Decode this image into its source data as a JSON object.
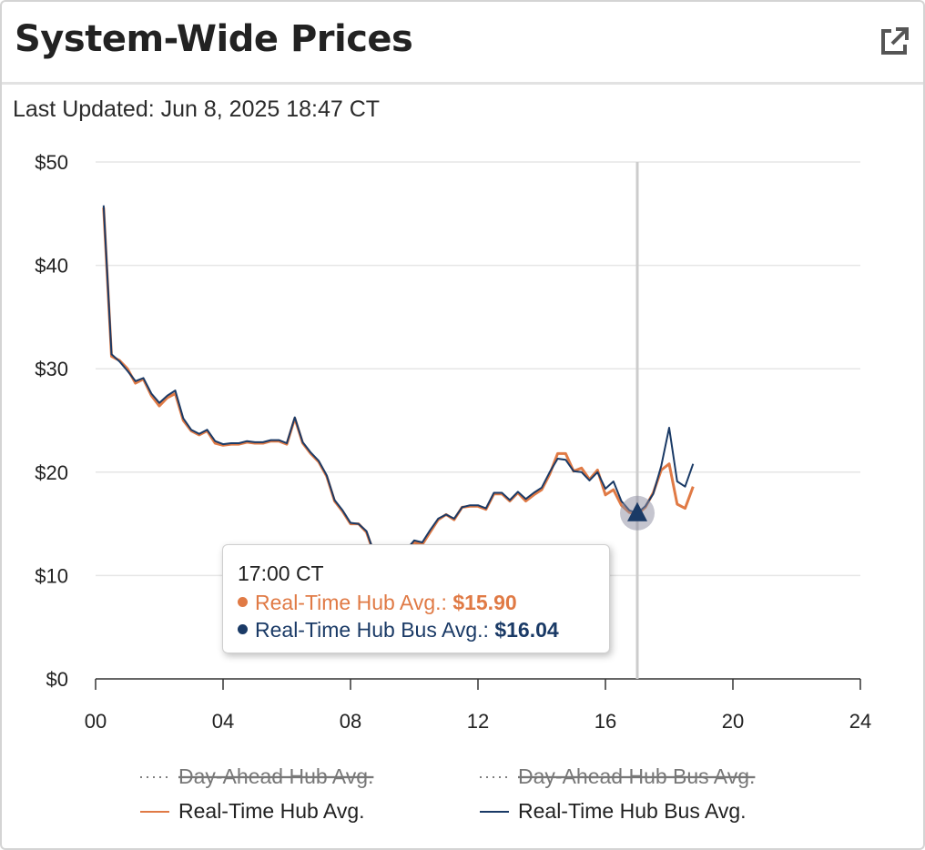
{
  "header": {
    "title": "System-Wide Prices",
    "external_link_icon": "external-link-icon"
  },
  "updated": {
    "text": "Last Updated: Jun 8, 2025 18:47 CT"
  },
  "colors": {
    "rt_hub": "#e07a45",
    "rt_bus": "#1a3a66",
    "grid": "#e6e6e6",
    "crosshair": "#cccccc"
  },
  "chart_data": {
    "type": "line",
    "xlabel": "",
    "ylabel": "",
    "xlim": [
      0,
      24
    ],
    "ylim": [
      0,
      50
    ],
    "x_ticks": [
      0,
      4,
      8,
      12,
      16,
      20,
      24
    ],
    "x_tick_labels": [
      "00",
      "04",
      "08",
      "12",
      "16",
      "20",
      "24"
    ],
    "y_ticks": [
      0,
      10,
      20,
      30,
      40,
      50
    ],
    "y_tick_labels": [
      "$0",
      "$10",
      "$20",
      "$30",
      "$40",
      "$50"
    ],
    "grid": true,
    "legend_position": "bottom",
    "series": [
      {
        "name": "Day-Ahead Hub Avg.",
        "style": "dotted",
        "visible": false,
        "x": [],
        "y": []
      },
      {
        "name": "Day-Ahead Hub Bus Avg.",
        "style": "dotted",
        "visible": false,
        "x": [],
        "y": []
      },
      {
        "name": "Real-Time Hub Avg.",
        "style": "solid",
        "visible": true,
        "x": [
          0.25,
          0.5,
          0.75,
          1.0,
          1.25,
          1.5,
          1.75,
          2.0,
          2.25,
          2.5,
          2.75,
          3.0,
          3.25,
          3.5,
          3.75,
          4.0,
          4.25,
          4.5,
          4.75,
          5.0,
          5.25,
          5.5,
          5.75,
          6.0,
          6.25,
          6.5,
          6.75,
          7.0,
          7.25,
          7.5,
          7.75,
          8.0,
          8.25,
          8.5,
          8.75,
          9.0,
          9.25,
          9.5,
          9.75,
          10.0,
          10.25,
          10.5,
          10.75,
          11.0,
          11.25,
          11.5,
          11.75,
          12.0,
          12.25,
          12.5,
          12.75,
          13.0,
          13.25,
          13.5,
          13.75,
          14.0,
          14.25,
          14.5,
          14.75,
          15.0,
          15.25,
          15.5,
          15.75,
          16.0,
          16.25,
          16.5,
          16.75,
          17.0,
          17.25,
          17.5,
          17.75,
          18.0,
          18.25,
          18.5,
          18.75
        ],
        "y": [
          45.6,
          31.2,
          30.8,
          30.0,
          28.6,
          29.0,
          27.4,
          26.4,
          27.2,
          27.6,
          25.0,
          24.0,
          23.6,
          24.0,
          22.8,
          22.6,
          22.7,
          22.7,
          22.9,
          22.8,
          22.8,
          23.0,
          23.0,
          22.7,
          25.2,
          22.8,
          21.8,
          21.0,
          19.6,
          17.2,
          16.2,
          15.0,
          15.0,
          14.2,
          12.0,
          11.5,
          11.3,
          11.8,
          12.4,
          13.2,
          13.0,
          14.2,
          15.4,
          15.9,
          15.4,
          16.6,
          16.7,
          16.7,
          16.4,
          17.9,
          17.9,
          17.2,
          18.0,
          17.2,
          17.8,
          18.3,
          19.8,
          21.8,
          21.8,
          20.1,
          20.4,
          19.3,
          20.2,
          17.8,
          18.3,
          16.8,
          16.1,
          15.9,
          16.6,
          18.0,
          20.2,
          20.8,
          16.9,
          16.5,
          18.6
        ]
      },
      {
        "name": "Real-Time Hub Bus Avg.",
        "style": "solid",
        "visible": true,
        "x": [
          0.25,
          0.5,
          0.75,
          1.0,
          1.25,
          1.5,
          1.75,
          2.0,
          2.25,
          2.5,
          2.75,
          3.0,
          3.25,
          3.5,
          3.75,
          4.0,
          4.25,
          4.5,
          4.75,
          5.0,
          5.25,
          5.5,
          5.75,
          6.0,
          6.25,
          6.5,
          6.75,
          7.0,
          7.25,
          7.5,
          7.75,
          8.0,
          8.25,
          8.5,
          8.75,
          9.0,
          9.25,
          9.5,
          9.75,
          10.0,
          10.25,
          10.5,
          10.75,
          11.0,
          11.25,
          11.5,
          11.75,
          12.0,
          12.25,
          12.5,
          12.75,
          13.0,
          13.25,
          13.5,
          13.75,
          14.0,
          14.25,
          14.5,
          14.75,
          15.0,
          15.25,
          15.5,
          15.75,
          16.0,
          16.25,
          16.5,
          16.75,
          17.0,
          17.25,
          17.5,
          17.75,
          18.0,
          18.25,
          18.5,
          18.75
        ],
        "y": [
          45.8,
          31.4,
          30.7,
          29.8,
          28.8,
          29.1,
          27.6,
          26.7,
          27.4,
          27.9,
          25.2,
          24.1,
          23.7,
          24.1,
          23.0,
          22.7,
          22.8,
          22.8,
          23.0,
          22.9,
          22.9,
          23.1,
          23.1,
          22.8,
          25.3,
          22.9,
          21.9,
          21.1,
          19.7,
          17.3,
          16.3,
          15.1,
          15.0,
          14.3,
          12.1,
          11.6,
          11.4,
          11.9,
          12.5,
          13.4,
          13.2,
          14.4,
          15.5,
          15.9,
          15.5,
          16.6,
          16.8,
          16.8,
          16.5,
          18.0,
          18.0,
          17.3,
          18.1,
          17.4,
          18.0,
          18.5,
          20.0,
          21.3,
          21.2,
          20.1,
          20.0,
          19.2,
          20.0,
          18.4,
          19.1,
          17.2,
          16.3,
          16.04,
          16.7,
          17.9,
          20.6,
          24.3,
          19.1,
          18.6,
          20.8
        ]
      }
    ],
    "hover": {
      "x": 17.0,
      "time_label": "17:00 CT",
      "rows": [
        {
          "label": "Real-Time Hub Avg.:",
          "value": "$15.90"
        },
        {
          "label": "Real-Time Hub Bus Avg.:",
          "value": "$16.04"
        }
      ]
    }
  }
}
